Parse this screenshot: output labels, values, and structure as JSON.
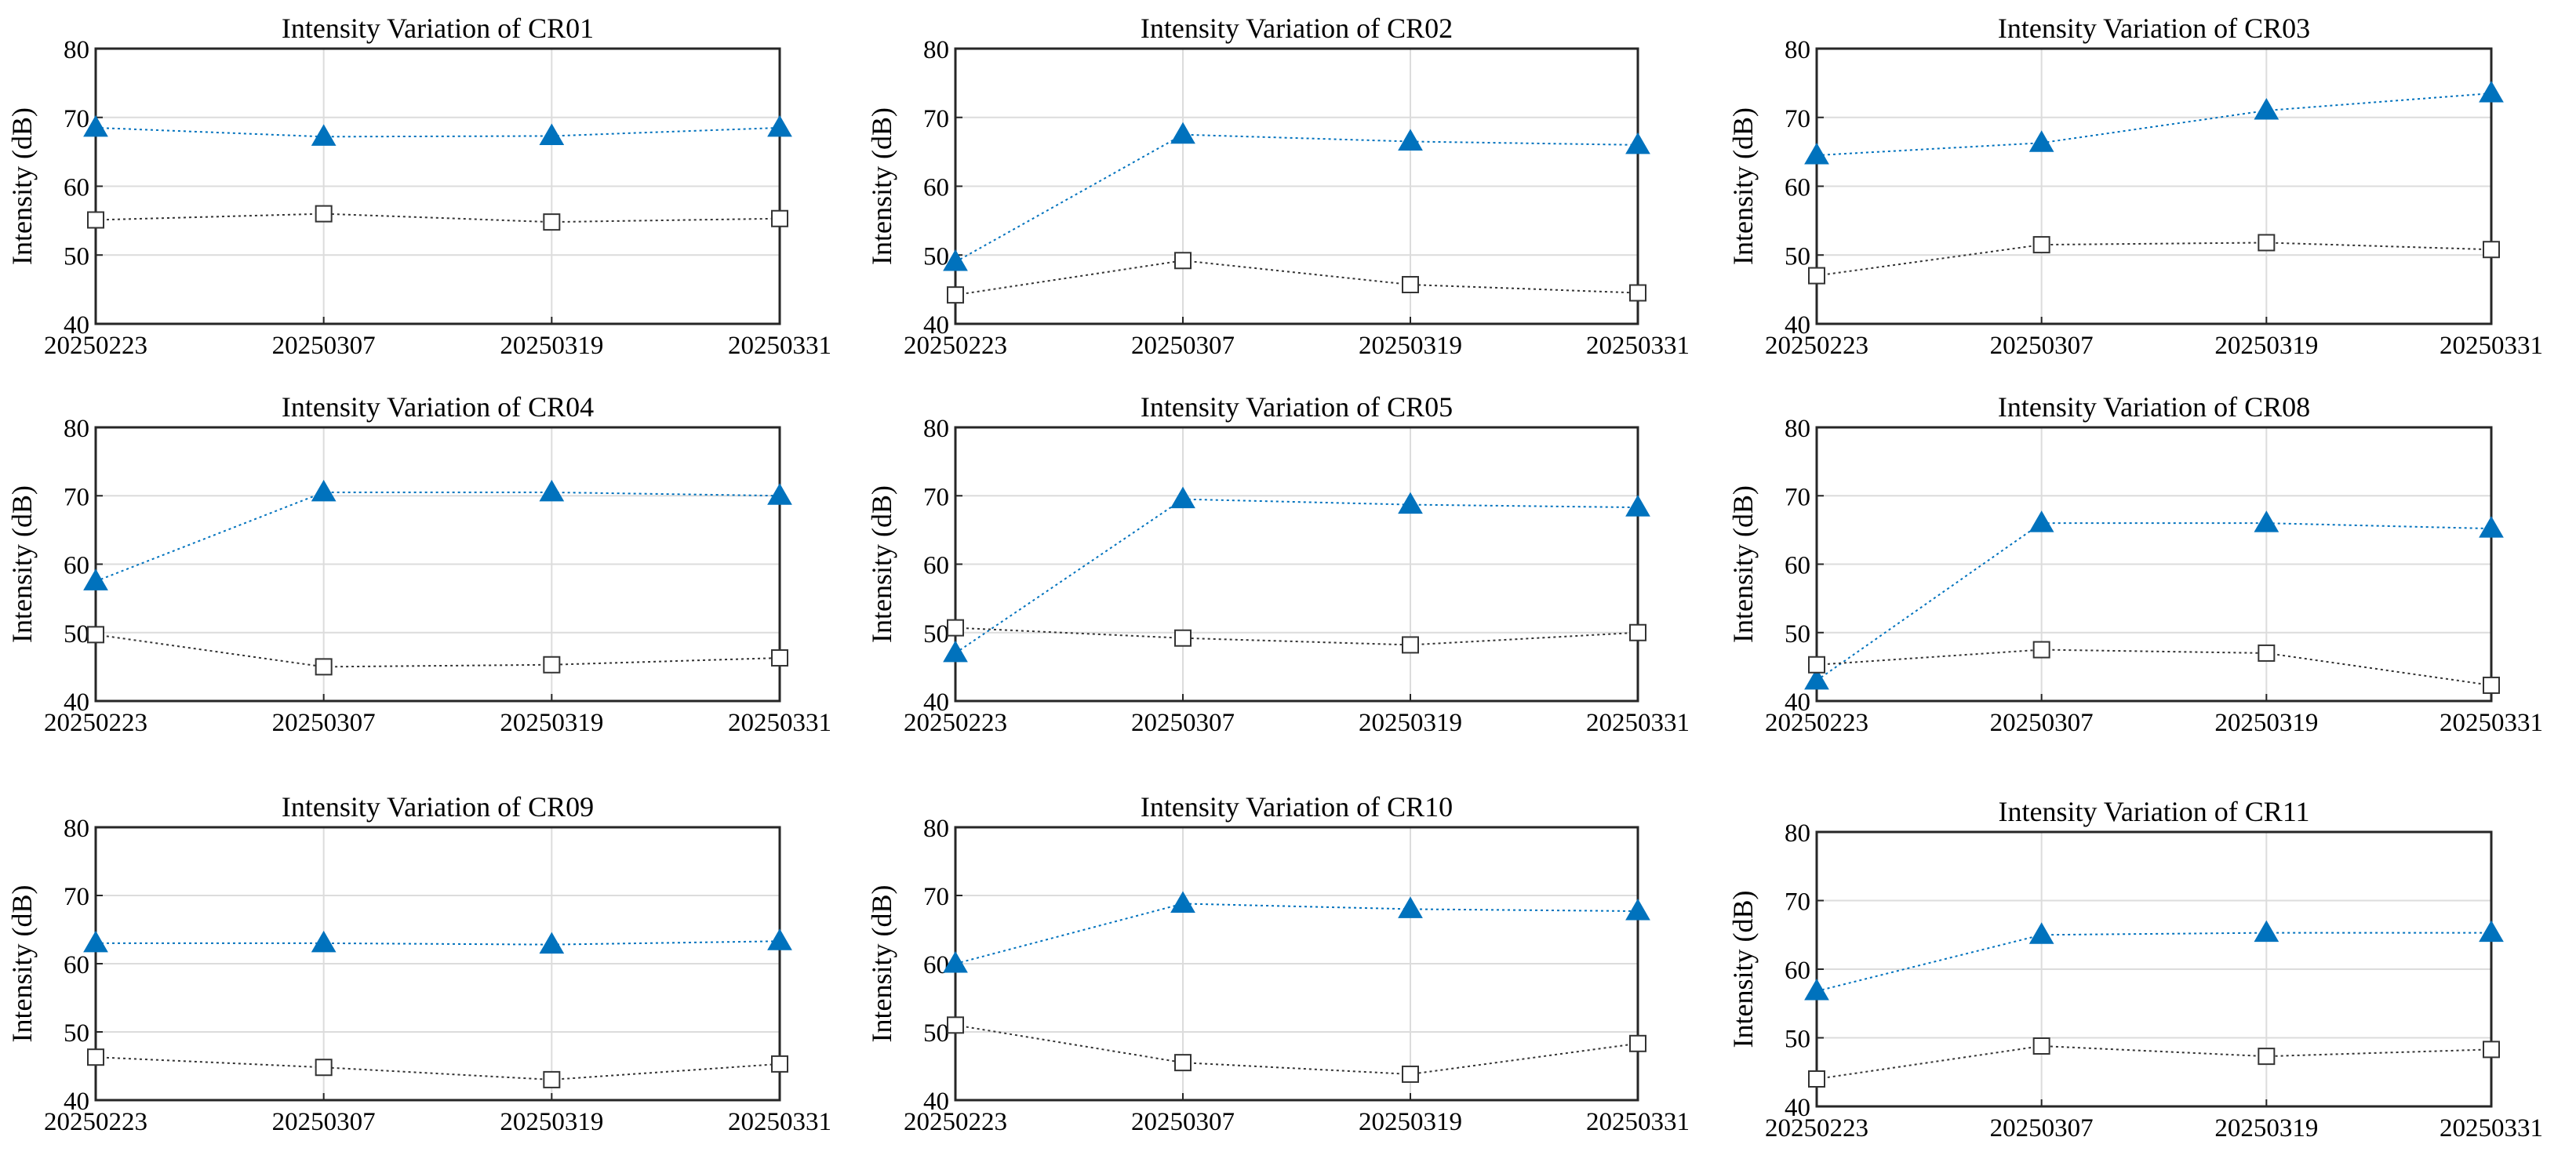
{
  "chart_data": [
    {
      "type": "line",
      "title": "Intensity Variation of CR01",
      "ylabel": "Intensity (dB)",
      "xlabel": "",
      "categories": [
        "20250223",
        "20250307",
        "20250319",
        "20250331"
      ],
      "ylim": [
        40,
        80
      ],
      "yticks": [
        40,
        50,
        60,
        70,
        80
      ],
      "grid": true,
      "series": [
        {
          "name": "triangle series",
          "marker": "triangle",
          "color": "#0072BD",
          "values": [
            68.5,
            67.2,
            67.3,
            68.5
          ]
        },
        {
          "name": "square series",
          "marker": "square",
          "color": "#333333",
          "values": [
            55.1,
            56.0,
            54.8,
            55.3
          ]
        }
      ]
    },
    {
      "type": "line",
      "title": "Intensity Variation of CR02",
      "ylabel": "Intensity (dB)",
      "xlabel": "",
      "categories": [
        "20250223",
        "20250307",
        "20250319",
        "20250331"
      ],
      "ylim": [
        40,
        80
      ],
      "yticks": [
        40,
        50,
        60,
        70,
        80
      ],
      "grid": true,
      "series": [
        {
          "name": "triangle series",
          "marker": "triangle",
          "color": "#0072BD",
          "values": [
            49.0,
            67.5,
            66.5,
            66.0
          ]
        },
        {
          "name": "square series",
          "marker": "square",
          "color": "#333333",
          "values": [
            44.2,
            49.2,
            45.7,
            44.5
          ]
        }
      ]
    },
    {
      "type": "line",
      "title": "Intensity Variation of CR03",
      "ylabel": "Intensity (dB)",
      "xlabel": "",
      "categories": [
        "20250223",
        "20250307",
        "20250319",
        "20250331"
      ],
      "ylim": [
        40,
        80
      ],
      "yticks": [
        40,
        50,
        60,
        70,
        80
      ],
      "grid": true,
      "series": [
        {
          "name": "triangle series",
          "marker": "triangle",
          "color": "#0072BD",
          "values": [
            64.5,
            66.3,
            71.0,
            73.5
          ]
        },
        {
          "name": "square series",
          "marker": "square",
          "color": "#333333",
          "values": [
            47.0,
            51.5,
            51.8,
            50.8
          ]
        }
      ]
    },
    {
      "type": "line",
      "title": "Intensity Variation of CR04",
      "ylabel": "Intensity (dB)",
      "xlabel": "",
      "categories": [
        "20250223",
        "20250307",
        "20250319",
        "20250331"
      ],
      "ylim": [
        40,
        80
      ],
      "yticks": [
        40,
        50,
        60,
        70,
        80
      ],
      "grid": true,
      "series": [
        {
          "name": "triangle series",
          "marker": "triangle",
          "color": "#0072BD",
          "values": [
            57.5,
            70.5,
            70.5,
            70.0
          ]
        },
        {
          "name": "square series",
          "marker": "square",
          "color": "#333333",
          "values": [
            49.7,
            45.0,
            45.3,
            46.3
          ]
        }
      ]
    },
    {
      "type": "line",
      "title": "Intensity Variation of CR05",
      "ylabel": "Intensity (dB)",
      "xlabel": "",
      "categories": [
        "20250223",
        "20250307",
        "20250319",
        "20250331"
      ],
      "ylim": [
        40,
        80
      ],
      "yticks": [
        40,
        50,
        60,
        70,
        80
      ],
      "grid": true,
      "series": [
        {
          "name": "triangle series",
          "marker": "triangle",
          "color": "#0072BD",
          "values": [
            47.0,
            69.5,
            68.7,
            68.3
          ]
        },
        {
          "name": "square series",
          "marker": "square",
          "color": "#333333",
          "values": [
            50.7,
            49.2,
            48.2,
            50.0
          ]
        }
      ]
    },
    {
      "type": "line",
      "title": "Intensity Variation of CR08",
      "ylabel": "Intensity (dB)",
      "xlabel": "",
      "categories": [
        "20250223",
        "20250307",
        "20250319",
        "20250331"
      ],
      "ylim": [
        40,
        80
      ],
      "yticks": [
        40,
        50,
        60,
        70,
        80
      ],
      "grid": true,
      "series": [
        {
          "name": "triangle series",
          "marker": "triangle",
          "color": "#0072BD",
          "values": [
            43.0,
            66.0,
            66.0,
            65.2
          ]
        },
        {
          "name": "square series",
          "marker": "square",
          "color": "#333333",
          "values": [
            45.3,
            47.5,
            47.0,
            42.3
          ]
        }
      ]
    },
    {
      "type": "line",
      "title": "Intensity Variation of CR09",
      "ylabel": "Intensity (dB)",
      "xlabel": "",
      "categories": [
        "20250223",
        "20250307",
        "20250319",
        "20250331"
      ],
      "ylim": [
        40,
        80
      ],
      "yticks": [
        40,
        50,
        60,
        70,
        80
      ],
      "grid": true,
      "series": [
        {
          "name": "triangle series",
          "marker": "triangle",
          "color": "#0072BD",
          "values": [
            63.0,
            63.0,
            62.8,
            63.3
          ]
        },
        {
          "name": "square series",
          "marker": "square",
          "color": "#333333",
          "values": [
            46.3,
            44.8,
            43.0,
            45.3
          ]
        }
      ]
    },
    {
      "type": "line",
      "title": "Intensity Variation of CR10",
      "ylabel": "Intensity (dB)",
      "xlabel": "",
      "categories": [
        "20250223",
        "20250307",
        "20250319",
        "20250331"
      ],
      "ylim": [
        40,
        80
      ],
      "yticks": [
        40,
        50,
        60,
        70,
        80
      ],
      "grid": true,
      "series": [
        {
          "name": "triangle series",
          "marker": "triangle",
          "color": "#0072BD",
          "values": [
            60.0,
            68.8,
            68.0,
            67.7
          ]
        },
        {
          "name": "square series",
          "marker": "square",
          "color": "#333333",
          "values": [
            51.0,
            45.5,
            43.8,
            48.3
          ]
        }
      ]
    },
    {
      "type": "line",
      "title": "Intensity Variation of CR11",
      "ylabel": "Intensity (dB)",
      "xlabel": "",
      "categories": [
        "20250223",
        "20250307",
        "20250319",
        "20250331"
      ],
      "ylim": [
        40,
        80
      ],
      "yticks": [
        40,
        50,
        60,
        70,
        80
      ],
      "grid": true,
      "series": [
        {
          "name": "triangle series",
          "marker": "triangle",
          "color": "#0072BD",
          "values": [
            56.8,
            65.0,
            65.3,
            65.3
          ]
        },
        {
          "name": "square series",
          "marker": "square",
          "color": "#333333",
          "values": [
            44.0,
            48.8,
            47.3,
            48.3
          ]
        }
      ]
    }
  ]
}
